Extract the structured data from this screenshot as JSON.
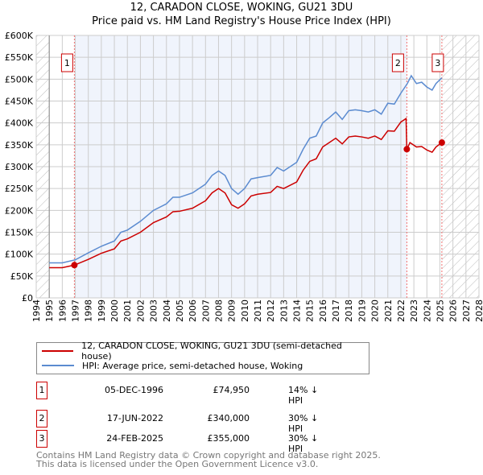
{
  "chart_data": {
    "type": "line",
    "title": "12, CARADON CLOSE, WOKING, GU21 3DU",
    "subtitle": "Price paid vs. HM Land Registry's House Price Index (HPI)",
    "xlim": [
      1994,
      2028
    ],
    "ylim": [
      0,
      600000
    ],
    "x_ticks": [
      "1994",
      "1995",
      "1996",
      "1997",
      "1998",
      "1999",
      "2000",
      "2001",
      "2002",
      "2003",
      "2004",
      "2005",
      "2006",
      "2007",
      "2008",
      "2009",
      "2010",
      "2011",
      "2012",
      "2013",
      "2014",
      "2015",
      "2016",
      "2017",
      "2018",
      "2019",
      "2020",
      "2021",
      "2022",
      "2023",
      "2024",
      "2025",
      "2026",
      "2027",
      "2028"
    ],
    "y_ticks": [
      "£0",
      "£50K",
      "£100K",
      "£150K",
      "£200K",
      "£250K",
      "£300K",
      "£350K",
      "£400K",
      "£450K",
      "£500K",
      "£550K",
      "£600K"
    ],
    "grid": true,
    "series": [
      {
        "name": "12, CARADON CLOSE, WOKING, GU21 3DU (semi-detached house)",
        "color": "#cc0000",
        "x": [
          1995,
          1996,
          1996.93,
          1998,
          1999,
          2000,
          2000.5,
          2001,
          2002,
          2003,
          2004,
          2004.5,
          2005,
          2006,
          2007,
          2007.5,
          2008,
          2008.5,
          2009,
          2009.5,
          2010,
          2010.5,
          2011,
          2012,
          2012.5,
          2013,
          2014,
          2014.5,
          2015,
          2015.5,
          2016,
          2016.5,
          2017,
          2017.5,
          2018,
          2018.5,
          2019,
          2019.5,
          2020,
          2020.5,
          2021,
          2021.5,
          2022,
          2022.4,
          2022.46,
          2022.7,
          2023.2,
          2023.6,
          2024,
          2024.4,
          2024.7,
          2025.15
        ],
        "y": [
          69000,
          69000,
          74950,
          88000,
          102000,
          112000,
          130000,
          135000,
          150000,
          172000,
          185000,
          197000,
          198000,
          205000,
          222000,
          240000,
          250000,
          240000,
          213000,
          205000,
          215000,
          233000,
          237000,
          241000,
          255000,
          250000,
          265000,
          292000,
          312000,
          318000,
          345000,
          355000,
          365000,
          352000,
          368000,
          370000,
          368000,
          365000,
          370000,
          362000,
          382000,
          381000,
          402000,
          410000,
          340000,
          355000,
          345000,
          346000,
          338000,
          333000,
          345000,
          355000
        ]
      },
      {
        "name": "HPI: Average price, semi-detached house, Woking",
        "color": "#5b8bd0",
        "x": [
          1995,
          1996,
          1997,
          1998,
          1999,
          2000,
          2000.5,
          2001,
          2002,
          2003,
          2004,
          2004.5,
          2005,
          2006,
          2007,
          2007.5,
          2008,
          2008.5,
          2009,
          2009.5,
          2010,
          2010.5,
          2011,
          2012,
          2012.5,
          2013,
          2014,
          2014.5,
          2015,
          2015.5,
          2016,
          2016.5,
          2017,
          2017.5,
          2018,
          2018.5,
          2019,
          2019.5,
          2020,
          2020.5,
          2021,
          2021.5,
          2022,
          2022.5,
          2022.8,
          2023.2,
          2023.6,
          2024,
          2024.4,
          2024.7,
          2025.15
        ],
        "y": [
          80000,
          80000,
          87000,
          103000,
          118000,
          130000,
          150000,
          155000,
          175000,
          200000,
          215000,
          230000,
          230000,
          240000,
          260000,
          280000,
          290000,
          280000,
          250000,
          237000,
          250000,
          272000,
          275000,
          280000,
          298000,
          290000,
          310000,
          340000,
          365000,
          370000,
          400000,
          412000,
          425000,
          408000,
          428000,
          430000,
          428000,
          425000,
          430000,
          420000,
          445000,
          443000,
          468000,
          490000,
          508000,
          490000,
          493000,
          482000,
          475000,
          490000,
          503000
        ]
      }
    ],
    "sales": [
      {
        "label": "1",
        "x": 1996.93,
        "y": 74950,
        "date": "05-DEC-1996",
        "price": "£74,950",
        "hpi": "14% ↓ HPI"
      },
      {
        "label": "2",
        "x": 2022.46,
        "y": 340000,
        "date": "17-JUN-2022",
        "price": "£340,000",
        "hpi": "30% ↓ HPI"
      },
      {
        "label": "3",
        "x": 2025.15,
        "y": 355000,
        "date": "24-FEB-2025",
        "price": "£355,000",
        "hpi": "30% ↓ HPI"
      }
    ],
    "legend": "bottom"
  },
  "footer": {
    "line1": "Contains HM Land Registry data © Crown copyright and database right 2025.",
    "line2": "This data is licensed under the Open Government Licence v3.0."
  }
}
